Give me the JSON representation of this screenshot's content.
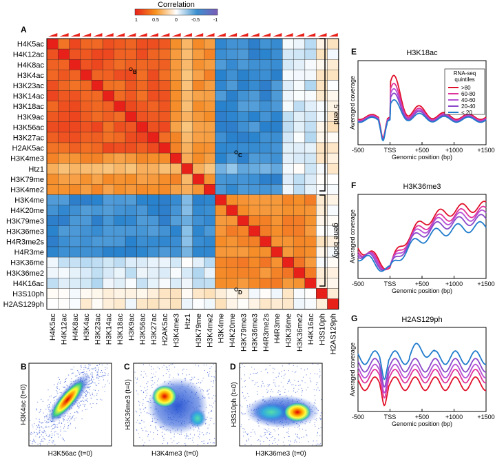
{
  "colorbar": {
    "title": "Correlation",
    "ticks": [
      "1",
      "0.5",
      "0",
      "-0.5",
      "-1"
    ]
  },
  "panels": {
    "A": "A",
    "B": "B",
    "C": "C",
    "D": "D",
    "E": "E",
    "F": "F",
    "G": "G"
  },
  "heatmap": {
    "marks": [
      "B",
      "C",
      "D"
    ],
    "groups": [
      "5' end",
      "gene body"
    ]
  },
  "chart_data": [
    {
      "id": "A",
      "type": "heatmap",
      "title": "Correlation",
      "rows": [
        "H4K5ac",
        "H4K12ac",
        "H4K8ac",
        "H3K4ac",
        "H3K23ac",
        "H3K14ac",
        "H3K18ac",
        "H3K9ac",
        "H3K56ac",
        "H3K27ac",
        "H2AK5ac",
        "H3K4me3",
        "Htz1",
        "H3K79me",
        "H3K4me2",
        "H3K4me",
        "H4K20me",
        "H3K79me3",
        "H3K36me3",
        "H4R3me2s",
        "H4R3me",
        "H3K36me",
        "H3K36me2",
        "H4K16ac",
        "H3S10ph",
        "H2AS129ph"
      ],
      "columns": [
        "H4K5ac",
        "H4K12ac",
        "H4K8ac",
        "H3K4ac",
        "H3K23ac",
        "H3K14ac",
        "H3K18ac",
        "H3K9ac",
        "H3K56ac",
        "H3K27ac",
        "H2AK5ac",
        "H3K4me3",
        "Htz1",
        "H3K79me",
        "H3K4me2",
        "H3K4me",
        "H4K20me",
        "H3K79me3",
        "H3K36me3",
        "H4R3me2s",
        "H4R3me",
        "H3K36me",
        "H3K36me2",
        "H4K16ac",
        "H3S10ph",
        "H2AS129ph"
      ],
      "value_range": [
        -1,
        1
      ],
      "clusters": [
        {
          "label": "5' end",
          "from": 0,
          "to": 14
        },
        {
          "label": "gene body",
          "from": 15,
          "to": 23
        }
      ]
    },
    {
      "id": "B",
      "type": "scatter",
      "xlabel": "H3K56ac (t=0)",
      "ylabel": "H3K4ac (t=0)"
    },
    {
      "id": "C",
      "type": "scatter",
      "xlabel": "H3K4me3 (t=0)",
      "ylabel": "H3K36me3 (t=0)"
    },
    {
      "id": "D",
      "type": "scatter",
      "xlabel": "H3K36me3 (t=0)",
      "ylabel": "H3S10ph (t=0)"
    },
    {
      "id": "E",
      "type": "line",
      "title": "H3K18ac",
      "xlabel": "Genomic position (bp)",
      "ylabel": "Averaged coverage",
      "xticks": [
        "-500",
        "TSS",
        "+500",
        "+1000",
        "+1500"
      ],
      "xlim": [
        -500,
        1500
      ],
      "legend_title": "RNA-seq quintiles",
      "series": [
        {
          "name": ">80",
          "color": "#e0102a"
        },
        {
          "name": "60-80",
          "color": "#e0329b"
        },
        {
          "name": "40-60",
          "color": "#b54fd6"
        },
        {
          "name": "20-40",
          "color": "#8a47c9"
        },
        {
          "name": "< 20",
          "color": "#1f7bcc"
        }
      ]
    },
    {
      "id": "F",
      "type": "line",
      "title": "H3K36me3",
      "xlabel": "Genomic position (bp)",
      "ylabel": "Averaged coverage",
      "xticks": [
        "-500",
        "TSS",
        "+500",
        "+1000",
        "+1500"
      ],
      "xlim": [
        -500,
        1500
      ],
      "series": [
        {
          "name": ">80",
          "color": "#e0102a"
        },
        {
          "name": "60-80",
          "color": "#e0329b"
        },
        {
          "name": "40-60",
          "color": "#b54fd6"
        },
        {
          "name": "20-40",
          "color": "#8a47c9"
        },
        {
          "name": "< 20",
          "color": "#1f7bcc"
        }
      ]
    },
    {
      "id": "G",
      "type": "line",
      "title": "H2AS129ph",
      "xlabel": "Genomic position (bp)",
      "ylabel": "Averaged coverage",
      "xticks": [
        "-500",
        "TSS",
        "+500",
        "+1000",
        "+1500"
      ],
      "xlim": [
        -500,
        1500
      ],
      "series": [
        {
          "name": ">80",
          "color": "#e0102a"
        },
        {
          "name": "60-80",
          "color": "#e0329b"
        },
        {
          "name": "40-60",
          "color": "#b54fd6"
        },
        {
          "name": "20-40",
          "color": "#8a47c9"
        },
        {
          "name": "< 20",
          "color": "#1f7bcc"
        }
      ]
    }
  ]
}
